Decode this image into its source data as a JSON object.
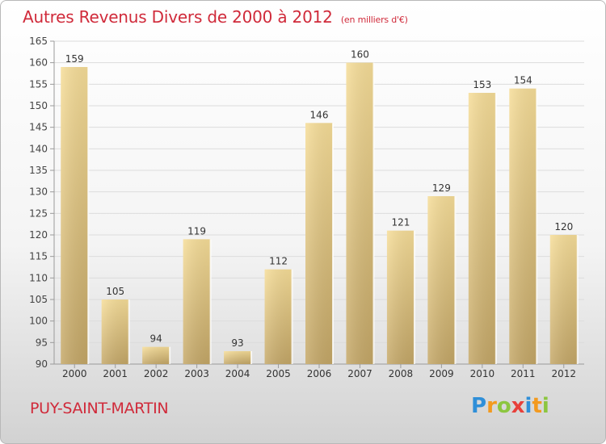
{
  "chart_data": {
    "type": "bar",
    "title": "Autres Revenus Divers de 2000 à 2012",
    "subtitle": "(en milliers d'€)",
    "categories": [
      "2000",
      "2001",
      "2002",
      "2003",
      "2004",
      "2005",
      "2006",
      "2007",
      "2008",
      "2009",
      "2010",
      "2011",
      "2012"
    ],
    "values": [
      159,
      105,
      94,
      119,
      93,
      112,
      146,
      160,
      121,
      129,
      153,
      154,
      120
    ],
    "ylim": [
      90,
      165
    ],
    "yticks": [
      90,
      95,
      100,
      105,
      110,
      115,
      120,
      125,
      130,
      135,
      140,
      145,
      150,
      155,
      160,
      165
    ],
    "grid": true,
    "bar_color": "#e4c97e",
    "xlabel": "",
    "ylabel": ""
  },
  "place_name": "PUY-SAINT-MARTIN",
  "logo": {
    "letters": [
      "P",
      "r",
      "o",
      "x",
      "i",
      "t",
      "i"
    ],
    "colors": [
      "#2f8fd8",
      "#f39a1f",
      "#8cc63f",
      "#e8403a",
      "#2f8fd8",
      "#f39a1f",
      "#8cc63f"
    ]
  },
  "colors": {
    "title": "#d02a3a",
    "place_name": "#d02a3a"
  }
}
